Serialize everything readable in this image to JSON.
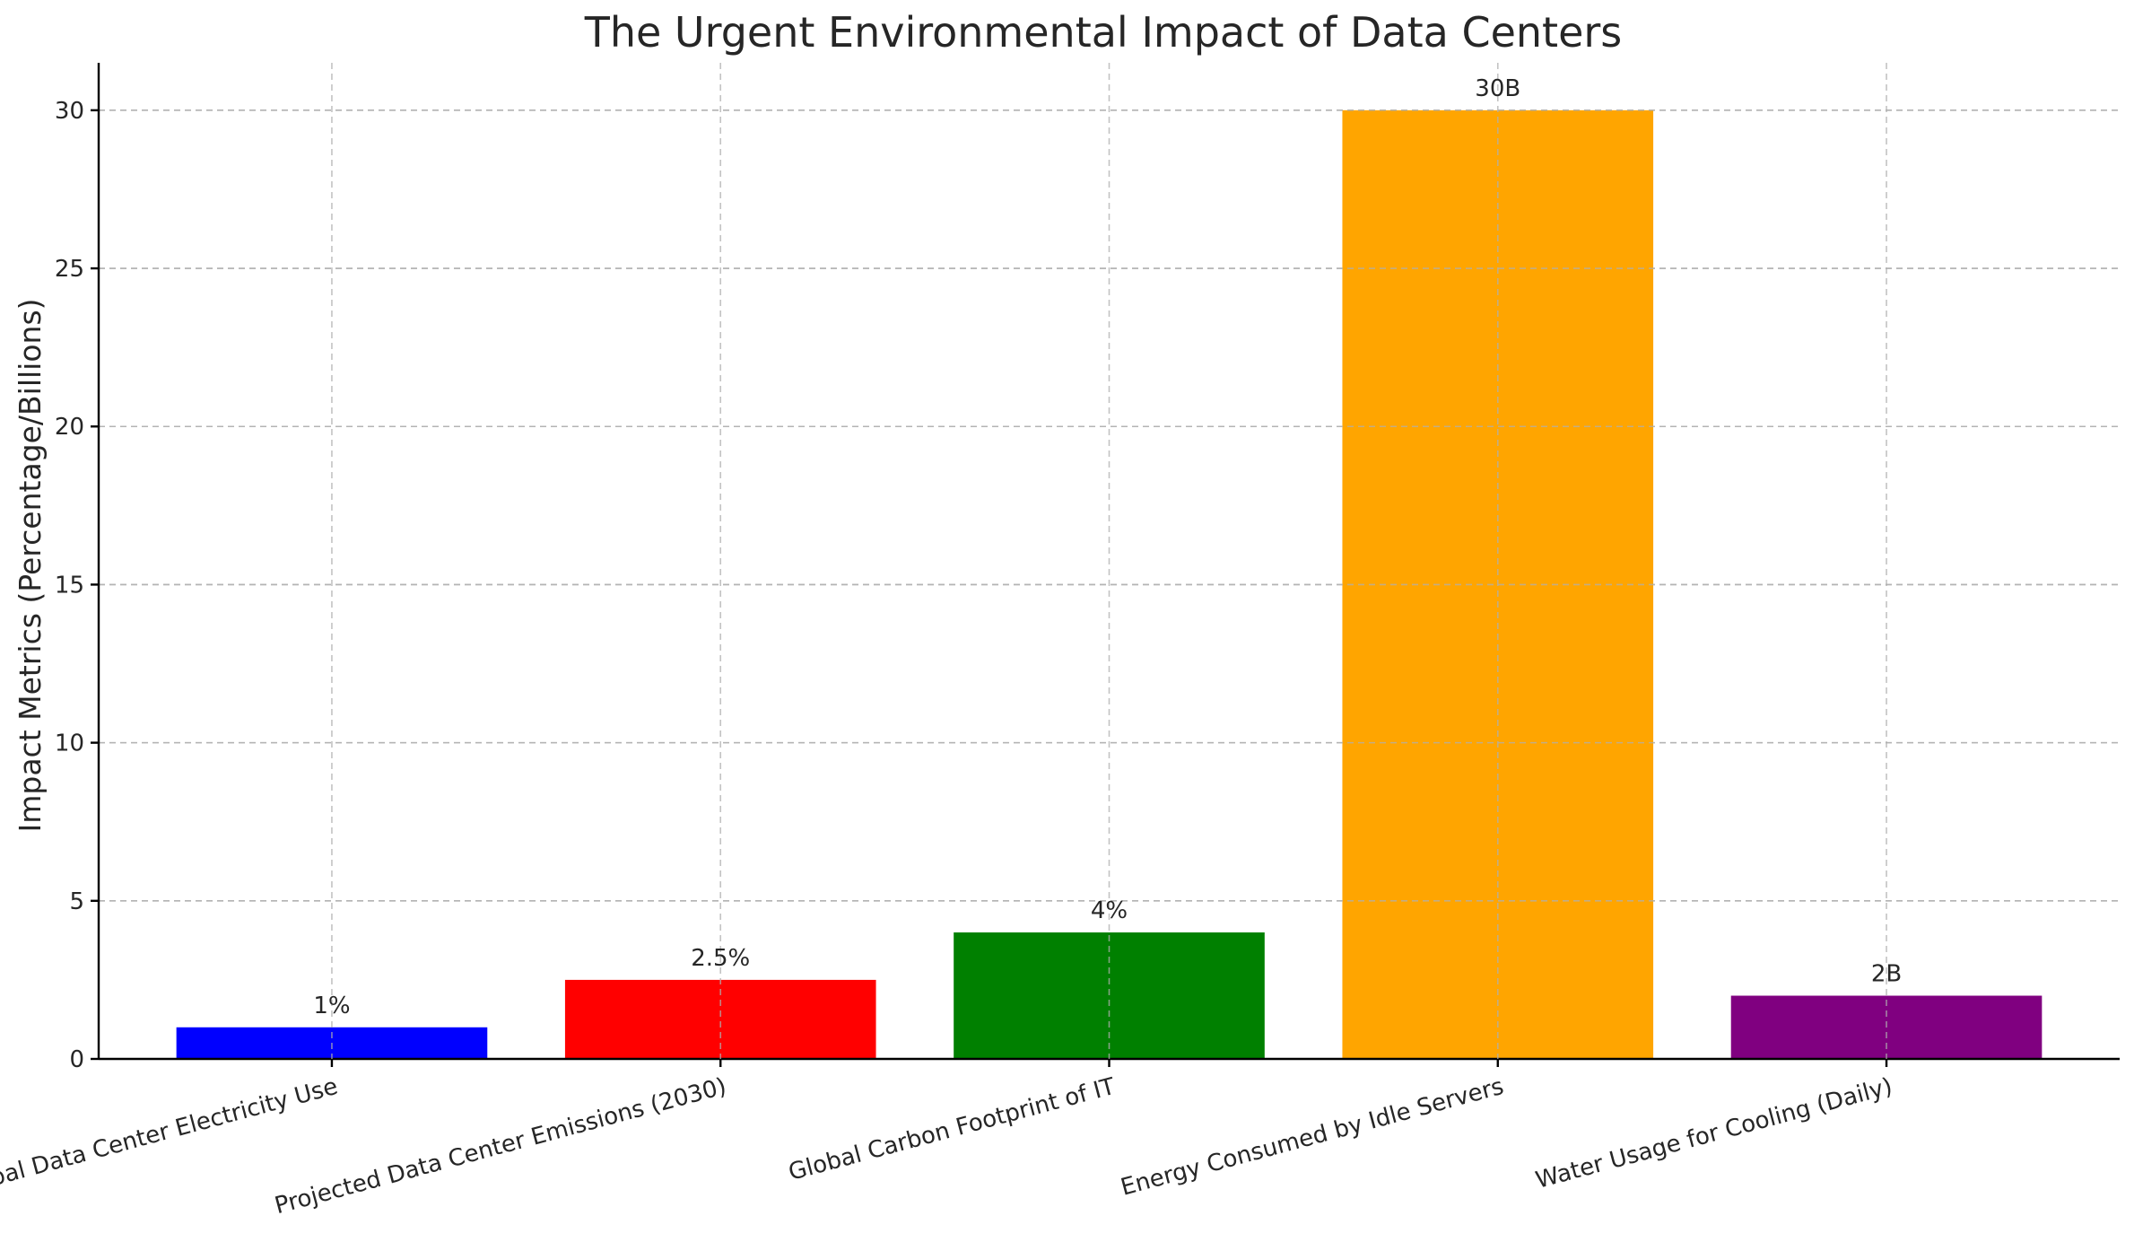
{
  "chart_data": {
    "type": "bar",
    "title": "The Urgent Environmental Impact of Data Centers",
    "xlabel": "",
    "ylabel": "Impact Metrics (Percentage/Billions)",
    "categories": [
      "Global Data Center Electricity Use",
      "Projected Data Center Emissions (2030)",
      "Global Carbon Footprint of IT",
      "Energy Consumed by Idle Servers",
      "Water Usage for Cooling (Daily)"
    ],
    "values": [
      1,
      2.5,
      4,
      30,
      2
    ],
    "data_labels": [
      "1%",
      "2.5%",
      "4%",
      "30B",
      "2B"
    ],
    "colors": [
      "#0000ff",
      "#ff0000",
      "#008000",
      "#ffa500",
      "#800080"
    ],
    "ylim": [
      0,
      31.5
    ],
    "yticks": [
      0,
      5,
      10,
      15,
      20,
      25,
      30
    ],
    "grid": true,
    "legend": "none"
  }
}
